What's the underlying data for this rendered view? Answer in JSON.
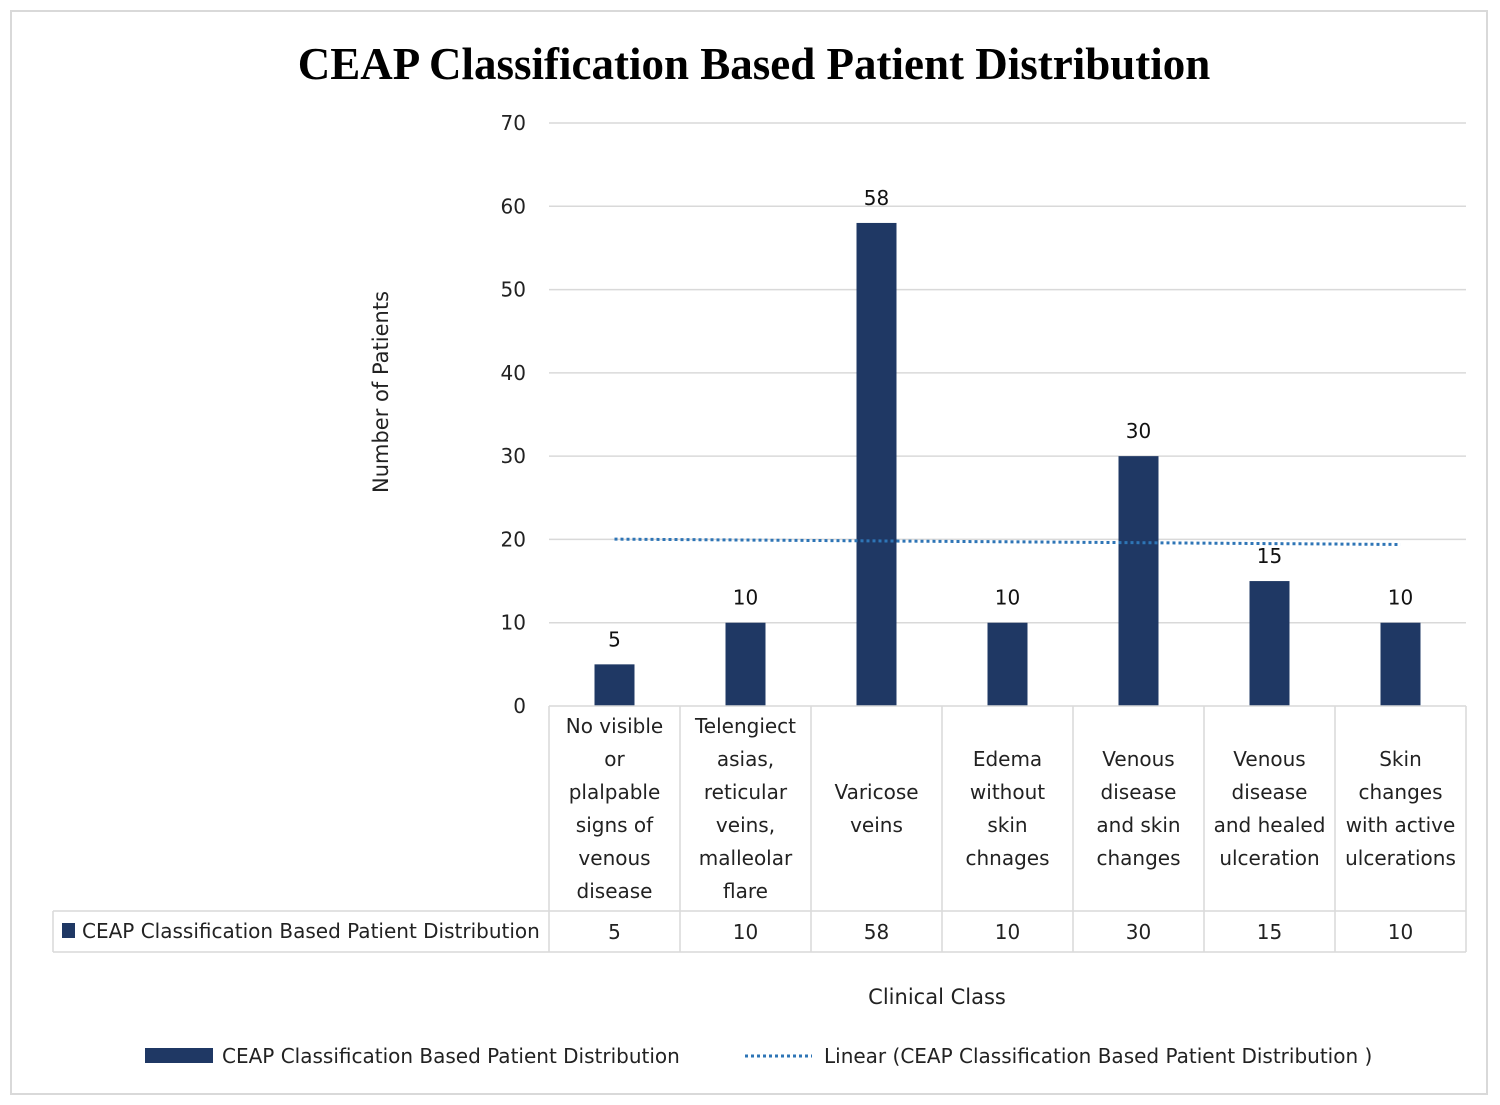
{
  "chart_data": {
    "type": "bar",
    "title": "CEAP Classification Based Patient Distribution",
    "xlabel": "Clinical Class",
    "ylabel": "Number of Patients",
    "ylim": [
      0,
      70
    ],
    "yticks": [
      0,
      10,
      20,
      30,
      40,
      50,
      60,
      70
    ],
    "grid": true,
    "categories": [
      [
        "No visible",
        "or",
        "plalpable",
        "signs of",
        "venous",
        "disease"
      ],
      [
        "Telengiect",
        "asias,",
        "reticular",
        "veins,",
        "malleolar",
        "flare"
      ],
      [
        "Varicose",
        "veins"
      ],
      [
        "Edema",
        "without",
        "skin",
        "chnages"
      ],
      [
        "Venous",
        "disease",
        "and skin",
        "changes"
      ],
      [
        "Venous",
        "disease",
        "and healed",
        "ulceration"
      ],
      [
        "Skin",
        "changes",
        "with active",
        "ulcerations"
      ]
    ],
    "series": [
      {
        "name": "CEAP Classification Based Patient Distribution",
        "values": [
          5,
          10,
          58,
          10,
          30,
          15,
          10
        ],
        "color": "#1f3864"
      }
    ],
    "trendline": {
      "name": "Linear (CEAP Classification Based Patient Distribution )",
      "type": "linear",
      "color": "#2e75b6"
    },
    "data_table": {
      "row_label": "CEAP Classification Based Patient Distribution",
      "values": [
        "5",
        "10",
        "58",
        "10",
        "30",
        "15",
        "10"
      ]
    },
    "legend": {
      "position": "bottom",
      "items": [
        "CEAP Classification Based Patient Distribution",
        "Linear (CEAP Classification Based Patient Distribution )"
      ]
    }
  }
}
